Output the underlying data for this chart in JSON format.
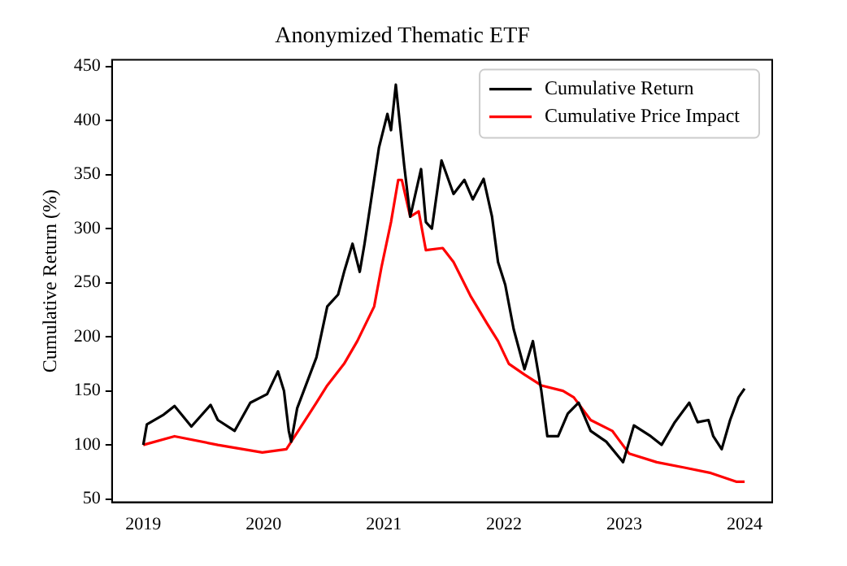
{
  "chart_data": {
    "type": "line",
    "title": "Anonymized Thematic ETF",
    "ylabel": "Cumulative Return (%)",
    "xlim": [
      2018.74,
      2024.23
    ],
    "xticks": [
      2019,
      2020,
      2021,
      2022,
      2023,
      2024
    ],
    "ylim": [
      47,
      456
    ],
    "yticks": [
      50,
      100,
      150,
      200,
      250,
      300,
      350,
      400,
      450
    ],
    "grid": false,
    "legend": "top right",
    "marker": "none",
    "line_style": "solid",
    "series": [
      {
        "name": "Cumulative Return",
        "color": "#000000",
        "x": [
          2019.0,
          2019.03,
          2019.17,
          2019.26,
          2019.4,
          2019.56,
          2019.62,
          2019.76,
          2019.89,
          2020.03,
          2020.12,
          2020.17,
          2020.21,
          2020.23,
          2020.28,
          2020.44,
          2020.53,
          2020.62,
          2020.67,
          2020.74,
          2020.8,
          2020.84,
          2020.89,
          2020.96,
          2021.03,
          2021.06,
          2021.1,
          2021.17,
          2021.22,
          2021.31,
          2021.35,
          2021.4,
          2021.48,
          2021.58,
          2021.67,
          2021.74,
          2021.83,
          2021.9,
          2021.95,
          2022.01,
          2022.08,
          2022.17,
          2022.24,
          2022.31,
          2022.36,
          2022.45,
          2022.53,
          2022.62,
          2022.72,
          2022.85,
          2022.99,
          2023.08,
          2023.22,
          2023.31,
          2023.42,
          2023.54,
          2023.61,
          2023.7,
          2023.74,
          2023.81,
          2023.88,
          2023.95,
          2024.0
        ],
        "values": [
          100,
          119,
          128,
          136,
          117,
          137,
          123,
          113,
          139,
          147,
          168,
          150,
          113,
          103,
          134,
          181,
          228,
          239,
          260,
          286,
          260,
          286,
          323,
          375,
          406,
          391,
          433,
          358,
          311,
          355,
          306,
          300,
          363,
          332,
          345,
          327,
          346,
          311,
          269,
          248,
          207,
          170,
          196,
          150,
          108,
          108,
          129,
          139,
          113,
          103,
          84,
          118,
          108,
          100,
          121,
          139,
          121,
          123,
          108,
          96,
          123,
          144,
          152
        ]
      },
      {
        "name": "Cumulative Price Impact",
        "color": "#ff0000",
        "x": [
          2019.0,
          2019.26,
          2019.62,
          2019.99,
          2020.19,
          2020.26,
          2020.44,
          2020.53,
          2020.67,
          2020.78,
          2020.92,
          2020.98,
          2021.06,
          2021.12,
          2021.15,
          2021.22,
          2021.29,
          2021.35,
          2021.49,
          2021.58,
          2021.72,
          2021.86,
          2021.95,
          2022.04,
          2022.17,
          2022.31,
          2022.49,
          2022.58,
          2022.72,
          2022.9,
          2023.04,
          2023.27,
          2023.5,
          2023.72,
          2023.93,
          2024.0
        ],
        "values": [
          100,
          108,
          100,
          93,
          96,
          108,
          139,
          155,
          175,
          196,
          228,
          264,
          306,
          345,
          345,
          311,
          316,
          280,
          282,
          269,
          238,
          212,
          196,
          175,
          165,
          155,
          150,
          144,
          123,
          113,
          92,
          84,
          79,
          74,
          66,
          66
        ]
      }
    ]
  }
}
